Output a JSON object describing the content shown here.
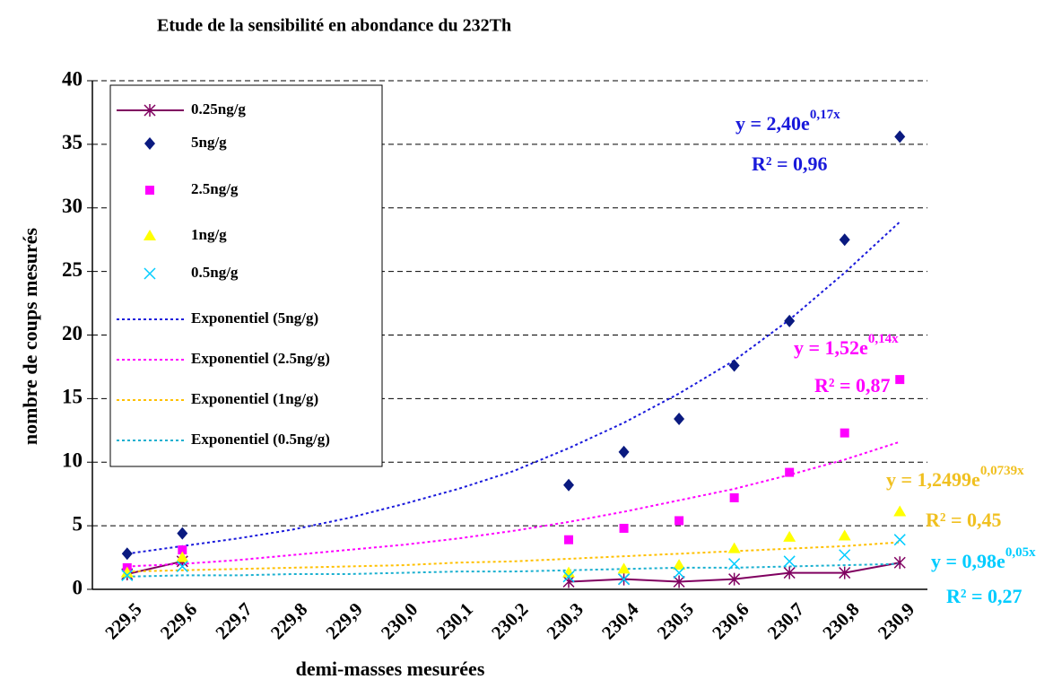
{
  "chart_data": {
    "type": "scatter",
    "title": "Etude de la sensibilité en abondance du 232Th",
    "x_label": "demi-masses mesurées",
    "y_label": "nombre de coups mesurés",
    "categories": [
      "229,5",
      "229,6",
      "229,7",
      "229,8",
      "229,9",
      "230,0",
      "230,1",
      "230,2",
      "230,3",
      "230,4",
      "230,5",
      "230,6",
      "230,7",
      "230,8",
      "230,9"
    ],
    "ylim": [
      0,
      40
    ],
    "yticks": [
      0,
      5,
      10,
      15,
      20,
      25,
      30,
      35,
      40
    ],
    "grid": true,
    "legend": "top-left",
    "series": [
      {
        "name": "0.25ng/g",
        "color": "#800060",
        "marker": "asterisk",
        "line": "solid",
        "values": [
          1.2,
          2.2,
          null,
          null,
          null,
          null,
          null,
          null,
          0.6,
          0.8,
          0.6,
          0.8,
          1.3,
          1.3,
          2.1
        ]
      },
      {
        "name": "5ng/g",
        "color": "#0a1a80",
        "marker": "diamond",
        "line": "none",
        "values": [
          2.8,
          4.4,
          null,
          null,
          null,
          null,
          null,
          null,
          8.2,
          10.8,
          13.4,
          17.6,
          21.1,
          27.5,
          35.6
        ]
      },
      {
        "name": "2.5ng/g",
        "color": "#ff00ff",
        "marker": "square",
        "line": "none",
        "values": [
          1.7,
          3.1,
          null,
          null,
          null,
          null,
          null,
          null,
          3.9,
          4.8,
          5.4,
          7.2,
          9.2,
          12.3,
          16.5
        ]
      },
      {
        "name": "1ng/g",
        "color": "#ffff00",
        "marker": "triangle",
        "line": "none",
        "values": [
          1.3,
          2.5,
          null,
          null,
          null,
          null,
          null,
          null,
          1.3,
          1.6,
          1.9,
          3.2,
          4.1,
          4.2,
          6.1
        ]
      },
      {
        "name": "0.5ng/g",
        "color": "#00ccff",
        "marker": "x",
        "line": "none",
        "values": [
          1.1,
          1.8,
          null,
          null,
          null,
          null,
          null,
          null,
          1.0,
          0.8,
          1.3,
          2.0,
          2.2,
          2.7,
          3.9
        ]
      },
      {
        "name": "Exponentiel (5ng/g)",
        "color": "#1a1adb",
        "marker": "none",
        "line": "dotted",
        "values": [
          2.8,
          3.4,
          4.0,
          4.7,
          5.6,
          6.7,
          7.9,
          9.3,
          11.1,
          13.1,
          15.4,
          18.0,
          21.2,
          24.9,
          28.9
        ]
      },
      {
        "name": "Exponentiel (2.5ng/g)",
        "color": "#ff00ff",
        "marker": "none",
        "line": "dotted",
        "values": [
          1.8,
          2.0,
          2.3,
          2.7,
          3.1,
          3.5,
          4.0,
          4.6,
          5.3,
          6.1,
          7.0,
          7.9,
          9.0,
          10.2,
          11.6
        ]
      },
      {
        "name": "Exponentiel (1ng/g)",
        "color": "#ffc000",
        "marker": "none",
        "line": "dotted",
        "values": [
          1.4,
          1.5,
          1.6,
          1.7,
          1.8,
          1.9,
          2.1,
          2.2,
          2.4,
          2.6,
          2.8,
          3.0,
          3.2,
          3.4,
          3.7
        ]
      },
      {
        "name": "Exponentiel (0.5ng/g)",
        "color": "#1ab0d0",
        "marker": "none",
        "line": "dotted",
        "values": [
          1.0,
          1.1,
          1.1,
          1.2,
          1.2,
          1.3,
          1.4,
          1.4,
          1.5,
          1.6,
          1.7,
          1.7,
          1.8,
          1.9,
          2.0
        ]
      }
    ],
    "annotations": [
      {
        "color": "#1a1adb",
        "base": "y = 2,40e",
        "exponent": "0,17x",
        "r2": "R² = 0,96"
      },
      {
        "color": "#ff00ff",
        "base": "y = 1,52e",
        "exponent": "0,14x",
        "r2": "R² = 0,87"
      },
      {
        "color": "#f0c020",
        "base": "y = 1,2499e",
        "exponent": "0,0739x",
        "r2": "R² = 0,45"
      },
      {
        "color": "#00ccff",
        "base": "y = 0,98e",
        "exponent": "0,05x",
        "r2": "R² = 0,27"
      }
    ]
  }
}
